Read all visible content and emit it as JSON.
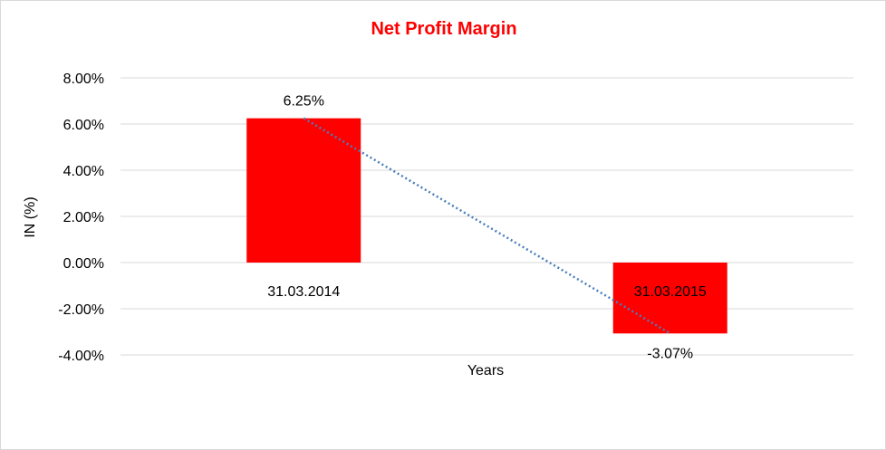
{
  "chart_data": {
    "type": "bar",
    "title": "Net Profit Margin",
    "xlabel": "Years",
    "ylabel": "IN (%)",
    "categories": [
      "31.03.2014",
      "31.03.2015"
    ],
    "values": [
      6.25,
      -3.07
    ],
    "data_labels": [
      "6.25%",
      "-3.07%"
    ],
    "ylim": [
      -4,
      8
    ],
    "yticks": [
      8,
      6,
      4,
      2,
      0,
      -2,
      -4
    ],
    "ytick_labels": [
      "8.00%",
      "6.00%",
      "4.00%",
      "2.00%",
      "0.00%",
      "-2.00%",
      "-4.00%"
    ],
    "grid": true,
    "trendline": {
      "type": "linear",
      "style": "dotted"
    },
    "colors": {
      "bar": "#ff0000",
      "title": "#ff0000",
      "trendline": "#4a7ebb",
      "grid": "#d9d9d9"
    }
  }
}
